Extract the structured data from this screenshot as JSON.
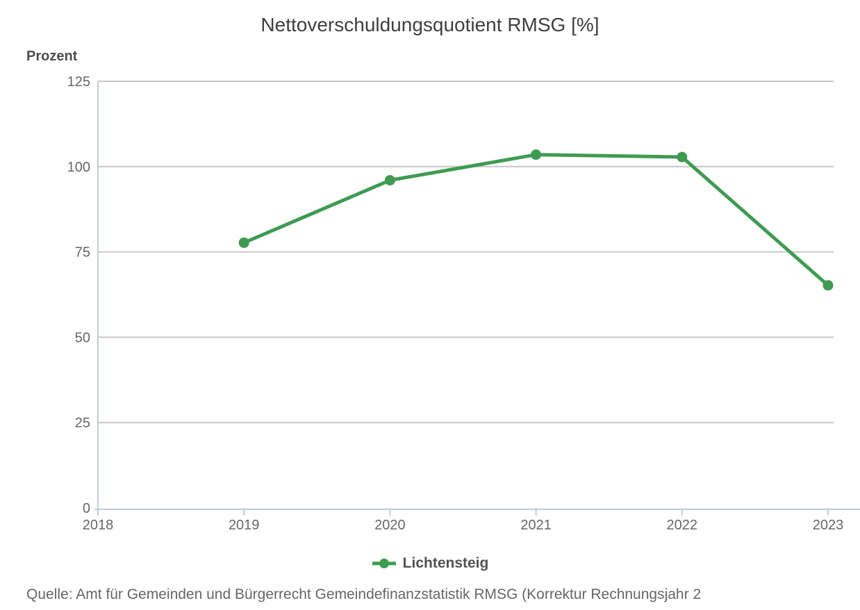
{
  "chart_data": {
    "type": "line",
    "title": "Nettoverschuldungsquotient RMSG [%]",
    "ylabel": "Prozent",
    "x": [
      2019,
      2020,
      2021,
      2022,
      2023
    ],
    "series": [
      {
        "name": "Lichtensteig",
        "values": [
          77.7,
          96.0,
          103.5,
          102.8,
          65.2
        ]
      }
    ],
    "xlim": [
      2018,
      2023
    ],
    "ylim": [
      0,
      125
    ],
    "xticks": [
      2018,
      2019,
      2020,
      2021,
      2022,
      2023
    ],
    "yticks": [
      0,
      25,
      50,
      75,
      100,
      125
    ],
    "grid": "horizontal-only",
    "legend_position": "bottom-center",
    "source": "Quelle: Amt für Gemeinden und Bürgerrecht Gemeindefinanzstatistik RMSG (Korrektur Rechnungsjahr 2",
    "colors": {
      "series": "#3e9b52",
      "axis": "#bccbdb",
      "grid": "#c6c6c6",
      "tick_text": "#666666",
      "title_text": "#3e3e3e",
      "label_text": "#4c4c4c",
      "legend_text": "#525252",
      "source_text": "#666666",
      "background": "#ffffff"
    }
  }
}
